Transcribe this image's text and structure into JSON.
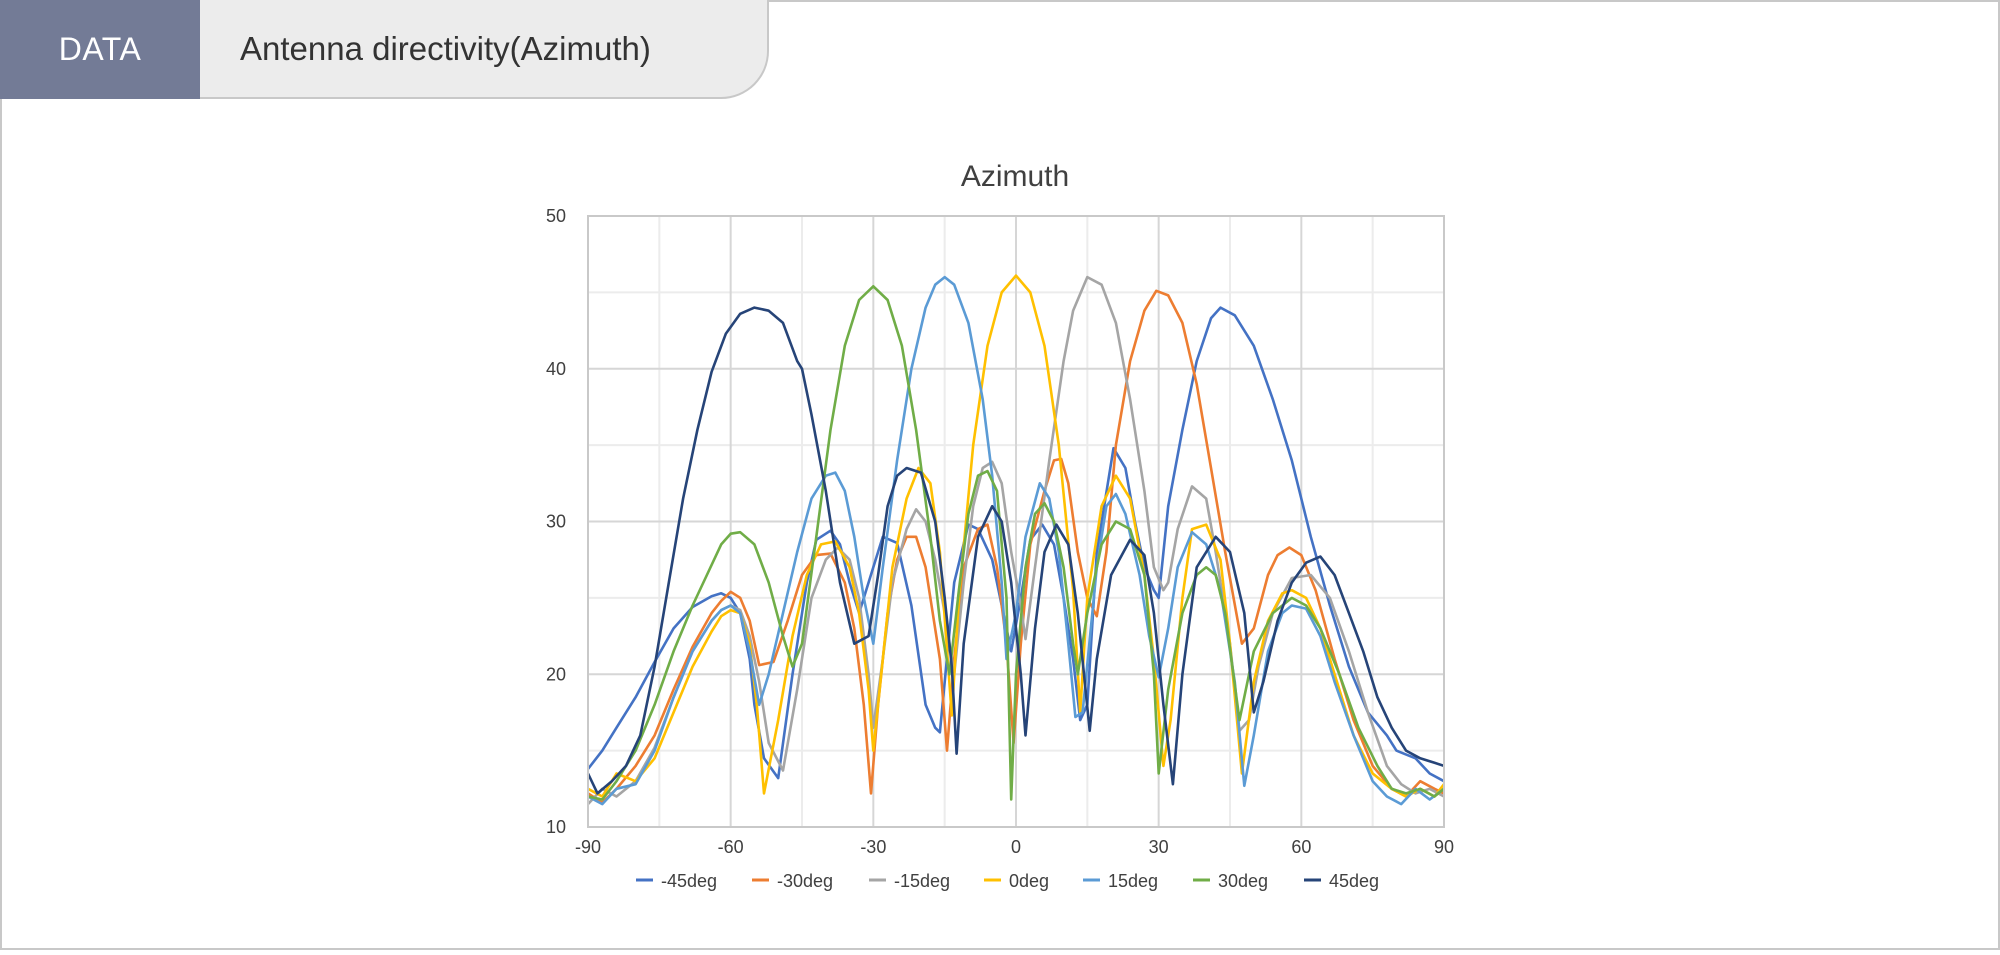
{
  "header": {
    "tag_label": "DATA",
    "title": "Antenna directivity(Azimuth)"
  },
  "chart": {
    "title": "Azimuth",
    "x_ticks": [
      "-90",
      "-60",
      "-30",
      "0",
      "30",
      "60",
      "90"
    ],
    "y_ticks": [
      "10",
      "20",
      "30",
      "40",
      "50"
    ]
  },
  "legend": [
    {
      "label": "-45deg",
      "color": "#4472C4"
    },
    {
      "label": "-30deg",
      "color": "#ED7D31"
    },
    {
      "label": "-15deg",
      "color": "#A5A5A5"
    },
    {
      "label": "0deg",
      "color": "#FFC000"
    },
    {
      "label": "15deg",
      "color": "#5B9BD5"
    },
    {
      "label": "30deg",
      "color": "#70AD47"
    },
    {
      "label": "45deg",
      "color": "#264478"
    }
  ],
  "chart_data": {
    "type": "line",
    "title": "Azimuth",
    "xlabel": "",
    "ylabel": "",
    "xlim": [
      -90,
      90
    ],
    "ylim": [
      10,
      50
    ],
    "x_major_step": 30,
    "y_major_step": 10,
    "grid": true,
    "legend_position": "bottom",
    "series": [
      {
        "name": "-45deg",
        "color": "#4472C4",
        "x": [
          -90,
          -87,
          -84,
          -80,
          -76,
          -72,
          -68,
          -64,
          -62,
          -60,
          -58,
          -56,
          -55,
          -53,
          -50,
          -47,
          -44,
          -42,
          -39,
          -37,
          -35,
          -33,
          -30,
          -28,
          -25,
          -22,
          -19,
          -17,
          -16,
          -13,
          -10,
          -8,
          -5,
          -2,
          -1,
          1,
          3,
          5.5,
          8,
          10,
          12,
          13.5,
          15,
          17,
          20.5,
          23,
          25,
          27,
          29,
          30,
          32,
          35,
          38,
          41,
          43,
          46,
          50,
          54,
          58,
          62,
          66,
          70,
          74,
          78,
          80,
          84,
          87,
          90
        ],
        "y": [
          13.8,
          15,
          16.5,
          18.5,
          20.8,
          23,
          24.4,
          25.1,
          25.3,
          25,
          24,
          21,
          18,
          14.5,
          13.2,
          20,
          26,
          28.8,
          29.4,
          28.5,
          26,
          24,
          27,
          29,
          28.6,
          24.5,
          18,
          16.5,
          16.2,
          26,
          29.8,
          29.5,
          27.5,
          23,
          21.5,
          25,
          28.8,
          29.8,
          28.5,
          25,
          21,
          17,
          18,
          28,
          34.8,
          33.5,
          30,
          27,
          25.5,
          25,
          31,
          36,
          40.5,
          43.3,
          44,
          43.5,
          41.5,
          38,
          34,
          29,
          24.5,
          20.5,
          17.5,
          16,
          15,
          14.5,
          13.5,
          13
        ]
      },
      {
        "name": "-30deg",
        "color": "#ED7D31",
        "x": [
          -90,
          -87,
          -84,
          -80,
          -76,
          -72,
          -68,
          -64,
          -62,
          -60,
          -58,
          -56,
          -54,
          -51,
          -48,
          -45,
          -42,
          -39,
          -36,
          -34,
          -32,
          -30.5,
          -29,
          -27,
          -25,
          -23,
          -21,
          -19,
          -16,
          -14.5,
          -13,
          -11,
          -8,
          -6,
          -4,
          -2,
          -0.5,
          1,
          3,
          6,
          8,
          9.5,
          11,
          13,
          15,
          17,
          19,
          21,
          24,
          27,
          29.5,
          32,
          35,
          38,
          41,
          44,
          47.5,
          50,
          53,
          55,
          57.5,
          60,
          63,
          67,
          71,
          75,
          79,
          82,
          85,
          88,
          90
        ],
        "y": [
          12.2,
          11.6,
          12.5,
          14,
          16,
          19,
          21.8,
          24,
          24.8,
          25.4,
          25,
          23.5,
          20.6,
          20.8,
          23.5,
          26.5,
          27.8,
          27.9,
          26,
          23,
          18,
          12.2,
          18,
          24,
          27.5,
          29,
          29,
          27,
          21,
          15,
          21,
          27,
          29.5,
          29.8,
          27,
          22,
          15.5,
          22,
          28.5,
          32,
          34,
          34.1,
          32.5,
          28,
          25,
          23.8,
          28,
          35,
          40.5,
          43.8,
          45.1,
          44.8,
          43,
          39,
          33.5,
          28,
          22,
          23,
          26.5,
          27.8,
          28.3,
          27.8,
          25.5,
          21,
          17,
          14,
          12.5,
          12,
          13,
          12.5,
          12.2
        ]
      },
      {
        "name": "-15deg",
        "color": "#A5A5A5",
        "x": [
          -90,
          -87,
          -84,
          -80,
          -76,
          -72,
          -68,
          -64,
          -62,
          -60,
          -58,
          -56,
          -54,
          -52,
          -49,
          -46,
          -43,
          -40,
          -37.5,
          -35,
          -33,
          -31,
          -30,
          -28,
          -26,
          -23,
          -21,
          -19,
          -17,
          -15,
          -13,
          -11,
          -9,
          -7,
          -5,
          -3,
          -1,
          1,
          2,
          4,
          7,
          10,
          12,
          15,
          18,
          21,
          24,
          27,
          29,
          31,
          32,
          34,
          37,
          40,
          42,
          45,
          47,
          49,
          51,
          54,
          58,
          62,
          66,
          70,
          74,
          78,
          81,
          84,
          87,
          90
        ],
        "y": [
          11.5,
          12.5,
          12,
          13,
          15.2,
          18.5,
          21.5,
          23.5,
          24.2,
          24.5,
          24.2,
          22.5,
          19.5,
          15.5,
          13.7,
          19,
          25,
          27.5,
          28.3,
          27.5,
          25,
          20,
          16.5,
          21,
          26,
          29.5,
          30.8,
          30,
          27.5,
          24,
          20,
          26,
          31,
          33.5,
          33.9,
          32.5,
          28,
          24.5,
          22.3,
          27,
          34,
          40.5,
          43.8,
          46,
          45.5,
          43,
          38,
          32,
          27,
          25.5,
          26,
          29.5,
          32.3,
          31.5,
          28,
          22,
          16.3,
          17,
          20.5,
          24,
          26.3,
          26.5,
          25,
          21.5,
          17.5,
          14,
          12.8,
          12.2,
          12.5,
          12
        ]
      },
      {
        "name": "0deg",
        "color": "#FFC000",
        "x": [
          -90,
          -87,
          -84,
          -80,
          -76,
          -72,
          -68,
          -64,
          -62,
          -60,
          -58,
          -56,
          -54.5,
          -53,
          -50,
          -47,
          -44,
          -41,
          -38,
          -35,
          -33,
          -31,
          -30,
          -28,
          -26,
          -23,
          -20.5,
          -18,
          -16,
          -13.5,
          -12,
          -9,
          -6,
          -3,
          0,
          3,
          6,
          9,
          12,
          13.5,
          15,
          18,
          21,
          24,
          27,
          29,
          31,
          32.5,
          35,
          37,
          40,
          43,
          45,
          47.5,
          50,
          53,
          56,
          58,
          61,
          64,
          67,
          71,
          75,
          79,
          82,
          85,
          88,
          90
        ],
        "y": [
          12.5,
          12,
          13.5,
          13,
          14.5,
          17.5,
          20.5,
          22.8,
          23.8,
          24.2,
          24,
          22,
          18,
          12.2,
          17,
          22.5,
          26.5,
          28.5,
          28.7,
          27,
          24,
          19,
          15,
          21,
          27,
          31.5,
          33.5,
          32.5,
          28,
          17.3,
          25,
          35,
          41.5,
          45,
          46.1,
          45,
          41.5,
          35,
          25.5,
          17.5,
          25,
          31,
          33,
          31.5,
          26.5,
          21,
          14,
          17,
          25,
          29.5,
          29.8,
          27.5,
          22,
          13.5,
          19.5,
          23.5,
          25.3,
          25.5,
          25,
          23,
          20,
          16,
          13.5,
          12.5,
          12,
          12.5,
          12,
          12.8
        ]
      },
      {
        "name": "15deg",
        "color": "#5B9BD5",
        "x": [
          -90,
          -87,
          -84,
          -80,
          -76,
          -72,
          -68,
          -64,
          -62,
          -60,
          -58,
          -56,
          -54,
          -52,
          -49,
          -46,
          -43,
          -40,
          -38,
          -36,
          -34,
          -32,
          -30,
          -28,
          -25,
          -22,
          -19,
          -17,
          -15,
          -13,
          -10,
          -7,
          -5,
          -3,
          -2,
          0,
          2,
          5,
          7,
          9,
          11,
          12.5,
          14,
          17,
          19,
          21,
          23,
          26,
          28,
          30,
          32,
          34,
          37,
          40,
          43,
          46,
          48,
          50,
          53,
          56,
          58,
          61,
          64,
          67,
          71,
          75,
          78,
          81,
          84,
          87,
          90
        ],
        "y": [
          12,
          11.5,
          12.5,
          12.8,
          15,
          18.5,
          21.5,
          23.5,
          24.2,
          24.5,
          24,
          21.5,
          18,
          20,
          24,
          28,
          31.5,
          33,
          33.2,
          32,
          29,
          25,
          22,
          27,
          34,
          40,
          44,
          45.5,
          46,
          45.5,
          43,
          38,
          33,
          26,
          21,
          24,
          29,
          32.5,
          31.5,
          28,
          22,
          17.2,
          17.5,
          27,
          31,
          31.8,
          30.5,
          26.5,
          22.5,
          19.8,
          23,
          27,
          29.3,
          28.5,
          25.5,
          19.5,
          12.7,
          16,
          21.5,
          24,
          24.5,
          24.3,
          22.5,
          19.5,
          16,
          13,
          12,
          11.5,
          12.5,
          11.8,
          12.5
        ]
      },
      {
        "name": "30deg",
        "color": "#70AD47",
        "x": [
          -90,
          -87,
          -84,
          -80,
          -76,
          -72,
          -68,
          -65,
          -62,
          -60,
          -58,
          -55,
          -52,
          -49,
          -47,
          -45,
          -42,
          -39,
          -36,
          -33,
          -30,
          -27,
          -24,
          -21,
          -18,
          -16,
          -14,
          -12,
          -10,
          -8,
          -6,
          -4,
          -2,
          -1,
          0,
          2,
          4,
          6,
          8,
          10,
          12,
          13,
          15,
          18,
          21,
          24,
          27,
          29,
          30,
          32,
          35,
          38,
          40,
          42,
          44,
          47,
          50,
          54,
          58,
          61,
          64,
          68,
          72,
          76,
          79,
          82,
          85,
          88,
          90
        ],
        "y": [
          12,
          11.8,
          13,
          15,
          18,
          21.5,
          24.5,
          26.5,
          28.5,
          29.2,
          29.3,
          28.5,
          26,
          22.5,
          20.5,
          22,
          29,
          36,
          41.5,
          44.5,
          45.4,
          44.5,
          41.5,
          36,
          29,
          23.5,
          20,
          25.5,
          30.5,
          33,
          33.3,
          32,
          25,
          11.8,
          20,
          27,
          30.5,
          31.2,
          30,
          27,
          22,
          20,
          24,
          28.5,
          30,
          29.5,
          26.5,
          20,
          13.5,
          19,
          24,
          26.5,
          27,
          26.5,
          24,
          17,
          21.5,
          24,
          25,
          24.5,
          23,
          20,
          16.5,
          14,
          12.5,
          12.2,
          12.5,
          12,
          12.5
        ]
      },
      {
        "name": "45deg",
        "color": "#264478",
        "x": [
          -90,
          -88,
          -85,
          -82,
          -79,
          -76,
          -73,
          -70,
          -67,
          -64,
          -61,
          -58,
          -55,
          -52,
          -49,
          -46,
          -45,
          -43,
          -40,
          -37,
          -34,
          -31,
          -29,
          -27,
          -25,
          -23,
          -20,
          -17,
          -15,
          -13.5,
          -12.5,
          -11,
          -8,
          -5,
          -3,
          -1,
          1,
          2,
          4,
          6,
          8.5,
          11,
          13,
          15.5,
          17,
          20,
          24,
          27,
          29,
          31,
          33,
          35,
          38,
          42,
          45,
          48,
          50,
          52,
          55,
          58,
          61,
          64,
          67,
          70,
          73,
          76,
          79,
          82,
          85,
          88,
          90
        ],
        "y": [
          13.5,
          12.2,
          13,
          14,
          16,
          20.5,
          26,
          31.5,
          36,
          39.8,
          42.3,
          43.6,
          44,
          43.8,
          43,
          40.5,
          40,
          37,
          32,
          26,
          22,
          22.5,
          26.5,
          31,
          33,
          33.5,
          33.2,
          30,
          25,
          20.5,
          14.8,
          22,
          29,
          31,
          30,
          26,
          20,
          16,
          23,
          28,
          29.8,
          28.5,
          24,
          16.3,
          21,
          26.5,
          28.8,
          27.8,
          24,
          18,
          12.8,
          20,
          27,
          29,
          28,
          24,
          17.5,
          19.5,
          23.5,
          26,
          27.3,
          27.7,
          26.5,
          24,
          21.5,
          18.5,
          16.5,
          15,
          14.5,
          14.2,
          14
        ]
      }
    ]
  }
}
